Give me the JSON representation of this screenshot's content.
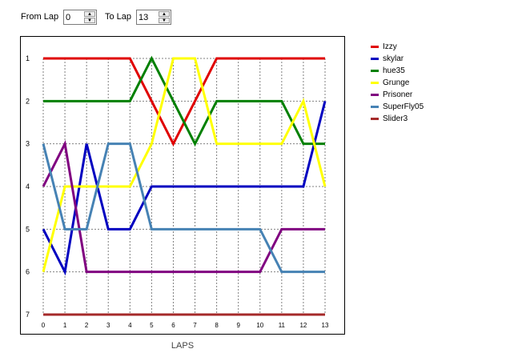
{
  "controls": {
    "from_label": "From Lap",
    "from_value": "0",
    "to_label": "To Lap",
    "to_value": "13"
  },
  "chart_data": {
    "type": "line",
    "xlabel": "LAPS",
    "x": [
      0,
      1,
      2,
      3,
      4,
      5,
      6,
      7,
      8,
      9,
      10,
      11,
      12,
      13
    ],
    "ylim": [
      7,
      1
    ],
    "yticks": [
      "1",
      "2",
      "3",
      "4",
      "5",
      "6",
      "7"
    ],
    "xticks": [
      "0",
      "1",
      "2",
      "3",
      "4",
      "5",
      "6",
      "7",
      "8",
      "9",
      "10",
      "11",
      "12",
      "13"
    ],
    "grid": true,
    "legend_position": "right",
    "series": [
      {
        "name": "Izzy",
        "color": "#e00000",
        "values": [
          1,
          1,
          1,
          1,
          1,
          2,
          3,
          2,
          1,
          1,
          1,
          1,
          1,
          1
        ]
      },
      {
        "name": "skylar",
        "color": "#0000c0",
        "values": [
          5,
          6,
          3,
          5,
          5,
          4,
          4,
          4,
          4,
          4,
          4,
          4,
          4,
          2
        ]
      },
      {
        "name": "hue35",
        "color": "#008000",
        "values": [
          2,
          2,
          2,
          2,
          2,
          1,
          2,
          3,
          2,
          2,
          2,
          2,
          3,
          3
        ]
      },
      {
        "name": "Grunge",
        "color": "#ffff00",
        "values": [
          6,
          4,
          4,
          4,
          4,
          3,
          1,
          1,
          3,
          3,
          3,
          3,
          2,
          4
        ]
      },
      {
        "name": "Prisoner",
        "color": "#800080",
        "values": [
          4,
          3,
          6,
          6,
          6,
          6,
          6,
          6,
          6,
          6,
          6,
          5,
          5,
          5
        ]
      },
      {
        "name": "SuperFly05",
        "color": "#4682b4",
        "values": [
          3,
          5,
          5,
          3,
          3,
          5,
          5,
          5,
          5,
          5,
          5,
          6,
          6,
          6
        ]
      },
      {
        "name": "Slider3",
        "color": "#a52a2a",
        "values": [
          7,
          7,
          7,
          7,
          7,
          7,
          7,
          7,
          7,
          7,
          7,
          7,
          7,
          7
        ]
      }
    ]
  }
}
